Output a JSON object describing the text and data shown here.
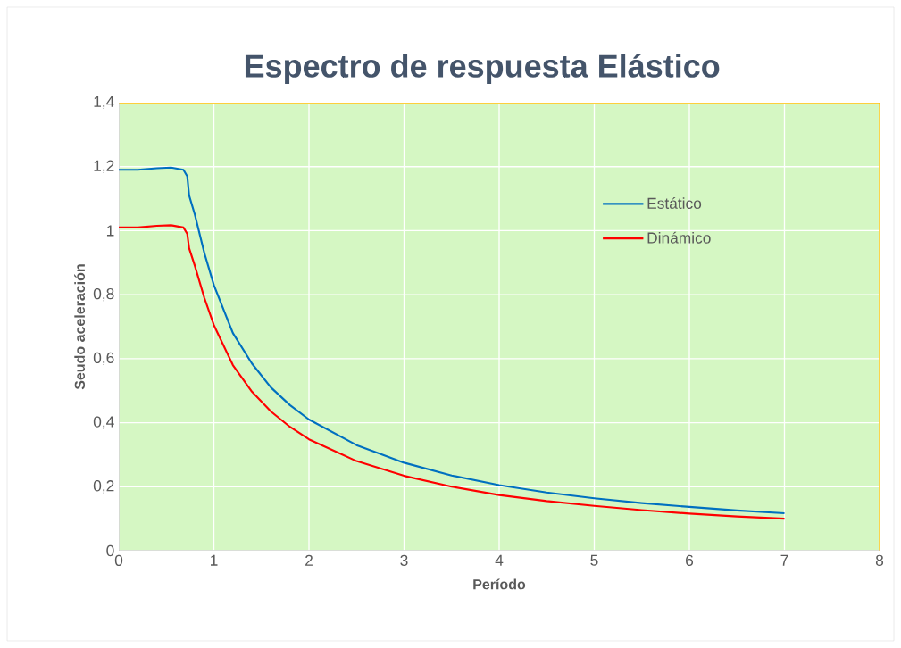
{
  "chart_data": {
    "type": "line",
    "title": "Espectro de respuesta Elástico",
    "xlabel": "Período",
    "ylabel": "Seudo aceleración",
    "xlim": [
      0,
      8
    ],
    "ylim": [
      0,
      1.4
    ],
    "xticks": [
      0,
      1,
      2,
      3,
      4,
      5,
      6,
      7,
      8
    ],
    "yticks": [
      0,
      {
        "value": 0.2,
        "label": "0,2"
      },
      {
        "value": 0.4,
        "label": "0,4"
      },
      {
        "value": 0.6,
        "label": "0,6"
      },
      {
        "value": 0.8,
        "label": "0,8"
      },
      1,
      {
        "value": 1.2,
        "label": "1,2"
      },
      {
        "value": 1.4,
        "label": "1,4"
      }
    ],
    "grid": true,
    "legend": "right",
    "marker": "none",
    "line_style": "solid",
    "x": [
      0,
      0.2,
      0.4,
      0.55,
      0.68,
      0.72,
      0.74,
      0.8,
      0.9,
      1.0,
      1.2,
      1.4,
      1.6,
      1.8,
      2.0,
      2.5,
      3,
      3.5,
      4,
      4.5,
      5,
      5.5,
      6,
      6.5,
      7
    ],
    "series": [
      {
        "name": "Estático",
        "color": "#0070c0",
        "values": [
          1.19,
          1.19,
          1.195,
          1.197,
          1.19,
          1.17,
          1.11,
          1.05,
          0.93,
          0.83,
          0.68,
          0.585,
          0.51,
          0.455,
          0.41,
          0.33,
          0.275,
          0.235,
          0.205,
          0.182,
          0.164,
          0.149,
          0.137,
          0.126,
          0.117
        ]
      },
      {
        "name": "Dinámico",
        "color": "#ff0000",
        "values": [
          1.01,
          1.01,
          1.015,
          1.017,
          1.01,
          0.99,
          0.945,
          0.89,
          0.79,
          0.705,
          0.58,
          0.497,
          0.435,
          0.387,
          0.348,
          0.28,
          0.234,
          0.2,
          0.174,
          0.155,
          0.14,
          0.127,
          0.116,
          0.107,
          0.1
        ]
      }
    ]
  }
}
